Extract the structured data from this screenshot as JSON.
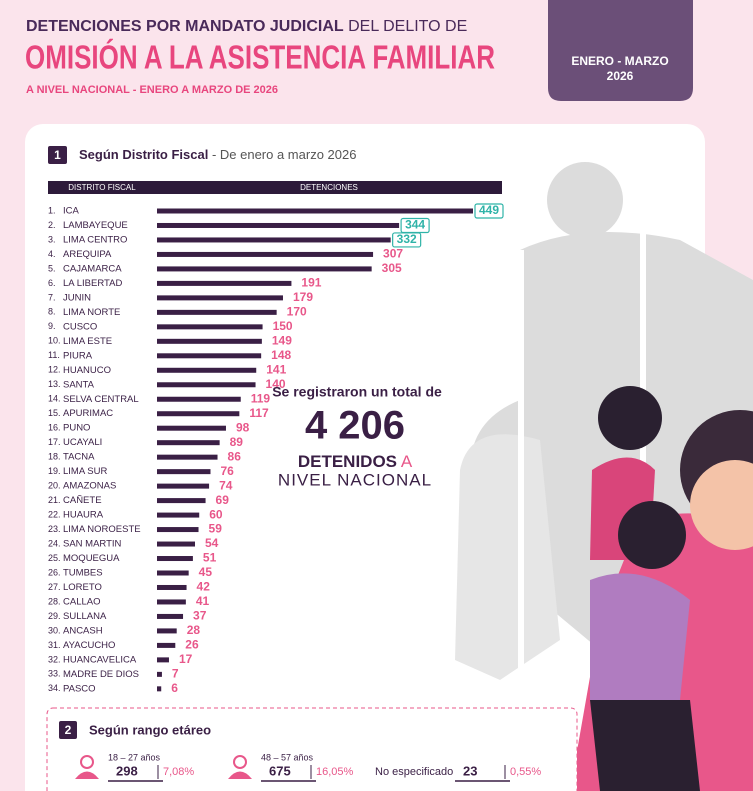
{
  "header": {
    "title_bold": "DETENCIONES POR MANDATO JUDICIAL",
    "title_rest": "DEL DELITO DE",
    "headline": "OMISIÓN A LA ASISTENCIA FAMILIAR",
    "subtitle": "A NIVEL NACIONAL - ENERO A MARZO DE 2026",
    "period_line1": "ENERO - MARZO",
    "period_line2": "2026"
  },
  "section1": {
    "number": "1",
    "title": "Según Distrito Fiscal",
    "subtitle": "- De enero a marzo 2026",
    "col1": "DISTRITO FISCAL",
    "col2": "DETENCIONES"
  },
  "chart_data": {
    "type": "hbar",
    "ranks": [
      "1.",
      "2.",
      "3.",
      "4.",
      "5.",
      "6.",
      "7.",
      "8.",
      "9.",
      "10.",
      "11.",
      "12.",
      "13.",
      "14.",
      "15.",
      "16.",
      "17.",
      "18.",
      "19.",
      "20.",
      "21.",
      "22.",
      "23.",
      "24.",
      "25.",
      "26.",
      "27.",
      "28.",
      "29.",
      "30.",
      "31.",
      "32.",
      "33.",
      "34."
    ],
    "categories": [
      "ICA",
      "LAMBAYEQUE",
      "LIMA CENTRO",
      "AREQUIPA",
      "CAJAMARCA",
      "LA LIBERTAD",
      "JUNIN",
      "LIMA NORTE",
      "CUSCO",
      "LIMA ESTE",
      "PIURA",
      "HUANUCO",
      "SANTA",
      "SELVA CENTRAL",
      "APURIMAC",
      "PUNO",
      "UCAYALI",
      "TACNA",
      "LIMA SUR",
      "AMAZONAS",
      "CAÑETE",
      "HUAURA",
      "LIMA NOROESTE",
      "SAN MARTIN",
      "MOQUEGUA",
      "TUMBES",
      "LORETO",
      "CALLAO",
      "SULLANA",
      "ANCASH",
      "AYACUCHO",
      "HUANCAVELICA",
      "MADRE DE DIOS",
      "PASCO"
    ],
    "values": [
      449,
      344,
      332,
      307,
      305,
      191,
      179,
      170,
      150,
      149,
      148,
      141,
      140,
      119,
      117,
      98,
      89,
      86,
      76,
      74,
      69,
      60,
      59,
      54,
      51,
      45,
      42,
      41,
      37,
      28,
      26,
      17,
      7,
      6
    ],
    "color": "#3a1f45",
    "label_color": "#e8578a",
    "boxed_count": 3,
    "boxed_color": "#2fb3a8"
  },
  "summary": {
    "intro": "Se registraron un total de",
    "total": "4 206",
    "line1_bold": "DETENIDOS",
    "line1_rest": "A",
    "line2": "NIVEL NACIONAL"
  },
  "section2": {
    "number": "2",
    "title": "Según rango etáreo",
    "items": [
      {
        "label": "18 – 27 años",
        "count": "298",
        "percent": "7,08%"
      },
      {
        "label": "48 – 57 años",
        "count": "675",
        "percent": "16,05%"
      },
      {
        "label": "No especificado",
        "count": "23",
        "percent": "0,55%"
      }
    ]
  }
}
